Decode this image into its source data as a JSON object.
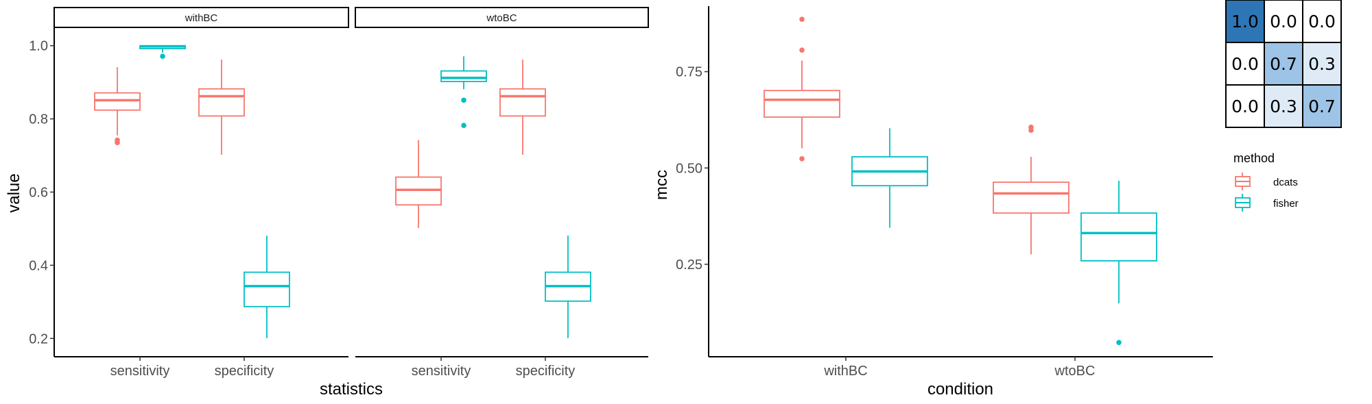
{
  "chart_data": [
    {
      "type": "boxplot",
      "facets": [
        "withBC",
        "wtoBC"
      ],
      "categories": [
        "sensitivity",
        "specificity"
      ],
      "xlabel": "statistics",
      "ylabel": "value",
      "ylim": [
        0.15,
        1.05
      ],
      "yticks": [
        0.2,
        0.4,
        0.6,
        0.8,
        1.0
      ],
      "ytick_labels": [
        "0.2",
        "0.4",
        "0.6",
        "0.8",
        "1.0"
      ],
      "boxes": [
        {
          "facet": "withBC",
          "category": "sensitivity",
          "group": "dcats",
          "lower_whisker": 0.755,
          "q1": 0.824,
          "median": 0.851,
          "q3": 0.871,
          "upper_whisker": 0.941,
          "outliers": [
            0.742,
            0.735
          ]
        },
        {
          "facet": "withBC",
          "category": "sensitivity",
          "group": "fisher",
          "lower_whisker": 0.981,
          "q1": 0.992,
          "median": 0.998,
          "q3": 1.0,
          "upper_whisker": 1.0,
          "outliers": [
            0.971
          ]
        },
        {
          "facet": "withBC",
          "category": "specificity",
          "group": "dcats",
          "lower_whisker": 0.702,
          "q1": 0.808,
          "median": 0.862,
          "q3": 0.882,
          "upper_whisker": 0.962,
          "outliers": []
        },
        {
          "facet": "withBC",
          "category": "specificity",
          "group": "fisher",
          "lower_whisker": 0.201,
          "q1": 0.287,
          "median": 0.343,
          "q3": 0.381,
          "upper_whisker": 0.481,
          "outliers": []
        },
        {
          "facet": "wtoBC",
          "category": "sensitivity",
          "group": "dcats",
          "lower_whisker": 0.502,
          "q1": 0.565,
          "median": 0.606,
          "q3": 0.641,
          "upper_whisker": 0.742,
          "outliers": []
        },
        {
          "facet": "wtoBC",
          "category": "sensitivity",
          "group": "fisher",
          "lower_whisker": 0.881,
          "q1": 0.902,
          "median": 0.912,
          "q3": 0.931,
          "upper_whisker": 0.971,
          "outliers": [
            0.851,
            0.782
          ]
        },
        {
          "facet": "wtoBC",
          "category": "specificity",
          "group": "dcats",
          "lower_whisker": 0.702,
          "q1": 0.808,
          "median": 0.862,
          "q3": 0.882,
          "upper_whisker": 0.962,
          "outliers": []
        },
        {
          "facet": "wtoBC",
          "category": "specificity",
          "group": "fisher",
          "lower_whisker": 0.201,
          "q1": 0.302,
          "median": 0.343,
          "q3": 0.381,
          "upper_whisker": 0.481,
          "outliers": []
        }
      ]
    },
    {
      "type": "boxplot",
      "categories": [
        "withBC",
        "wtoBC"
      ],
      "xlabel": "condition",
      "ylabel": "mcc",
      "ylim": [
        0.01,
        0.92
      ],
      "yticks": [
        0.25,
        0.5,
        0.75
      ],
      "ytick_labels": [
        "0.25",
        "0.50",
        "0.75"
      ],
      "boxes": [
        {
          "category": "withBC",
          "group": "dcats",
          "lower_whisker": 0.551,
          "q1": 0.632,
          "median": 0.677,
          "q3": 0.701,
          "upper_whisker": 0.779,
          "outliers": [
            0.524,
            0.806,
            0.886
          ]
        },
        {
          "category": "withBC",
          "group": "fisher",
          "lower_whisker": 0.345,
          "q1": 0.454,
          "median": 0.491,
          "q3": 0.529,
          "upper_whisker": 0.603,
          "outliers": []
        },
        {
          "category": "wtoBC",
          "group": "dcats",
          "lower_whisker": 0.276,
          "q1": 0.383,
          "median": 0.434,
          "q3": 0.463,
          "upper_whisker": 0.529,
          "outliers": [
            0.598,
            0.606
          ]
        },
        {
          "category": "wtoBC",
          "group": "fisher",
          "lower_whisker": 0.149,
          "q1": 0.259,
          "median": 0.331,
          "q3": 0.383,
          "upper_whisker": 0.467,
          "outliers": [
            0.047
          ]
        }
      ]
    },
    {
      "type": "heatmap",
      "values": [
        [
          1.0,
          0.0,
          0.0
        ],
        [
          0.0,
          0.7,
          0.3
        ],
        [
          0.0,
          0.3,
          0.7
        ]
      ],
      "labels": [
        [
          "1.0",
          "0.0",
          "0.0"
        ],
        [
          "0.0",
          "0.7",
          "0.3"
        ],
        [
          "0.0",
          "0.3",
          "0.7"
        ]
      ],
      "colors": {
        "low": "#ffffff",
        "mid": "#9dc3e6",
        "high": "#2e75b6"
      }
    }
  ],
  "legend": {
    "title": "method",
    "items": [
      {
        "label": "dcats",
        "color": "#f8766d"
      },
      {
        "label": "fisher",
        "color": "#00bfc4"
      }
    ]
  }
}
